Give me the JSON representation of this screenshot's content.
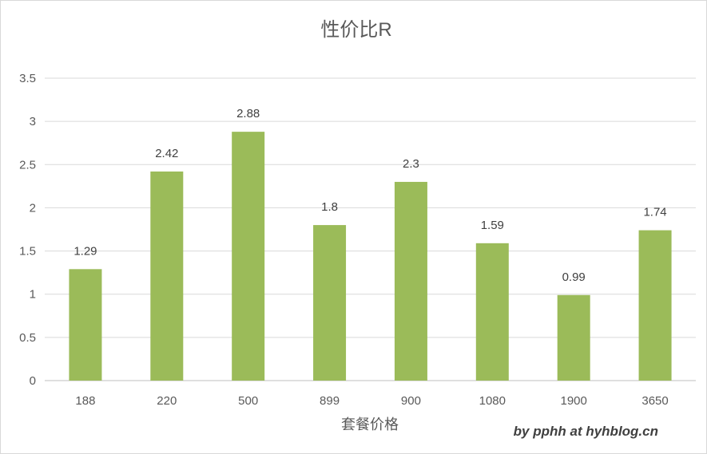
{
  "chart_data": {
    "type": "bar",
    "title": "性价比R",
    "xlabel": "套餐价格",
    "ylabel": "",
    "categories": [
      "188",
      "220",
      "500",
      "899",
      "900",
      "1080",
      "1900",
      "3650"
    ],
    "values": [
      1.29,
      2.42,
      2.88,
      1.8,
      2.3,
      1.59,
      0.99,
      1.74
    ],
    "data_labels": [
      "1.29",
      "2.42",
      "2.88",
      "1.8",
      "2.3",
      "1.59",
      "0.99",
      "1.74"
    ],
    "ylim": [
      0,
      3.5
    ],
    "yticks": [
      "0",
      "0.5",
      "1",
      "1.5",
      "2",
      "2.5",
      "3",
      "3.5"
    ],
    "grid": true,
    "legend": "none",
    "bar_color": "#9bbb59"
  },
  "watermark": "by pphh at hyhblog.cn"
}
